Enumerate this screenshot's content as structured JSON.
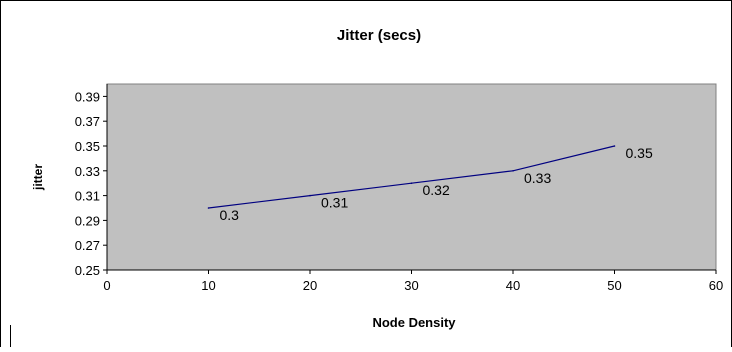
{
  "chart_data": {
    "type": "line",
    "title": "Jitter (secs)",
    "xlabel": "Node Density",
    "ylabel": "jitter",
    "xlim": [
      0,
      60
    ],
    "ylim": [
      0.25,
      0.4
    ],
    "x_ticks": [
      "0",
      "10",
      "20",
      "30",
      "40",
      "50",
      "60"
    ],
    "y_ticks": [
      "0.25",
      "0.27",
      "0.29",
      "0.31",
      "0.33",
      "0.35",
      "0.37",
      "0.39"
    ],
    "grid": false,
    "legend": "none",
    "series": [
      {
        "x": [
          10,
          20,
          30,
          40,
          50
        ],
        "values": [
          0.3,
          0.31,
          0.32,
          0.33,
          0.35
        ],
        "data_labels": [
          "0.3",
          "0.31",
          "0.32",
          "0.33",
          "0.35"
        ]
      }
    ],
    "colors": {
      "plot_background": "#c0c0c0",
      "line": "#000080"
    }
  }
}
